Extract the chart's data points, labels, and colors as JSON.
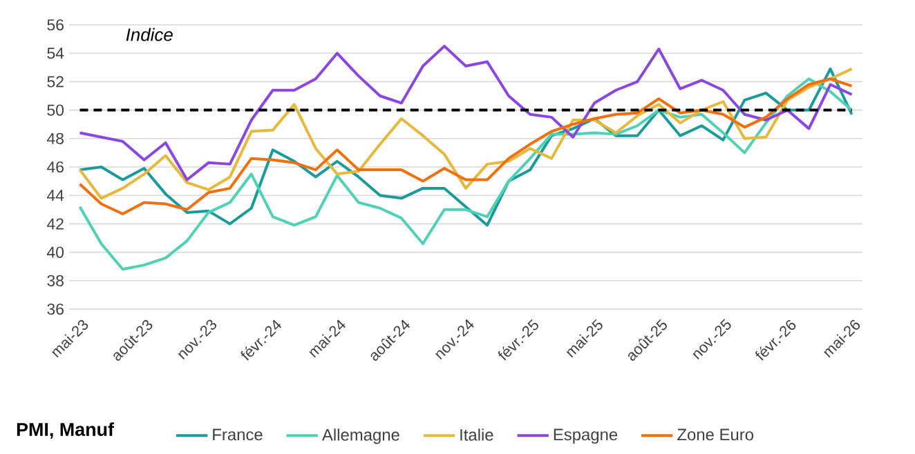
{
  "chart_data": {
    "type": "line",
    "title": "PMI, Manuf",
    "ylabel": "Indice",
    "categories": [
      "mai-23",
      null,
      null,
      "août-23",
      null,
      null,
      "nov.-23",
      null,
      null,
      "févr.-24",
      null,
      null,
      "mai-24",
      null,
      null,
      "août-24",
      null,
      null,
      "nov.-24",
      null,
      null,
      "févr.-25",
      null,
      null,
      "mai-25",
      null,
      null,
      "août-25",
      null,
      null,
      "nov.-25",
      null,
      null,
      "févr.-26",
      null,
      null,
      "mai-26"
    ],
    "series": [
      {
        "name": "France",
        "color": "#1a9a9a",
        "values": [
          45.8,
          46.0,
          45.1,
          45.9,
          44.1,
          42.8,
          42.9,
          42.0,
          43.1,
          47.2,
          46.4,
          45.3,
          46.4,
          45.3,
          44.0,
          43.8,
          44.5,
          44.5,
          43.2,
          41.9,
          45.0,
          45.8,
          48.2,
          48.7,
          49.4,
          48.2,
          48.2,
          50.0,
          48.2,
          48.9,
          47.9,
          50.7,
          51.2,
          50.0,
          50.0,
          52.9,
          49.7
        ]
      },
      {
        "name": "Allemagne",
        "color": "#4fd1b5",
        "values": [
          43.2,
          40.6,
          38.8,
          39.1,
          39.6,
          40.8,
          42.8,
          43.5,
          45.5,
          42.5,
          41.9,
          42.5,
          45.4,
          43.5,
          43.1,
          42.4,
          40.6,
          43.0,
          43.0,
          42.5,
          45.0,
          46.6,
          48.3,
          48.3,
          48.4,
          48.3,
          48.9,
          50.0,
          49.5,
          49.7,
          48.4,
          47.0,
          49.1,
          51.0,
          52.2,
          51.3,
          50.0
        ]
      },
      {
        "name": "Italie",
        "color": "#e6b83c",
        "values": [
          45.8,
          43.8,
          44.5,
          45.5,
          46.8,
          44.9,
          44.4,
          45.3,
          48.5,
          48.6,
          50.4,
          47.3,
          45.5,
          45.7,
          47.6,
          49.4,
          48.2,
          46.9,
          44.5,
          46.2,
          46.4,
          47.3,
          46.6,
          49.3,
          49.3,
          48.4,
          49.6,
          50.4,
          49.1,
          50.0,
          50.6,
          48.0,
          48.1,
          50.7,
          51.6,
          52.2,
          52.9
        ]
      },
      {
        "name": "Espagne",
        "color": "#8b45e0",
        "values": [
          48.4,
          48.1,
          47.8,
          46.5,
          47.7,
          45.1,
          46.3,
          46.2,
          49.3,
          51.4,
          51.4,
          52.2,
          54.0,
          52.4,
          51.0,
          50.5,
          53.1,
          54.5,
          53.1,
          53.4,
          51.0,
          49.7,
          49.5,
          48.1,
          50.5,
          51.4,
          52.0,
          54.3,
          51.5,
          52.1,
          51.4,
          49.7,
          49.3,
          50.0,
          48.7,
          51.8,
          51.1
        ]
      },
      {
        "name": "Zone Euro",
        "color": "#f07010",
        "values": [
          44.8,
          43.4,
          42.7,
          43.5,
          43.4,
          43.0,
          44.2,
          44.5,
          46.6,
          46.5,
          46.3,
          45.8,
          47.2,
          45.8,
          45.8,
          45.8,
          45.0,
          45.9,
          45.1,
          45.1,
          46.6,
          47.6,
          48.5,
          49.0,
          49.4,
          49.7,
          49.8,
          50.8,
          49.8,
          50.0,
          49.7,
          48.8,
          49.5,
          50.8,
          51.8,
          52.2,
          51.7
        ]
      }
    ],
    "ylim": [
      36,
      56
    ],
    "yticks": [
      36,
      38,
      40,
      42,
      44,
      46,
      48,
      50,
      52,
      54,
      56
    ],
    "grid": "y",
    "legend": "bottom",
    "marker": "none",
    "line_style": "solid",
    "ref_lines": [
      {
        "axis": "y",
        "value": 50,
        "color": "#000000",
        "line_style": "dashed"
      }
    ]
  }
}
